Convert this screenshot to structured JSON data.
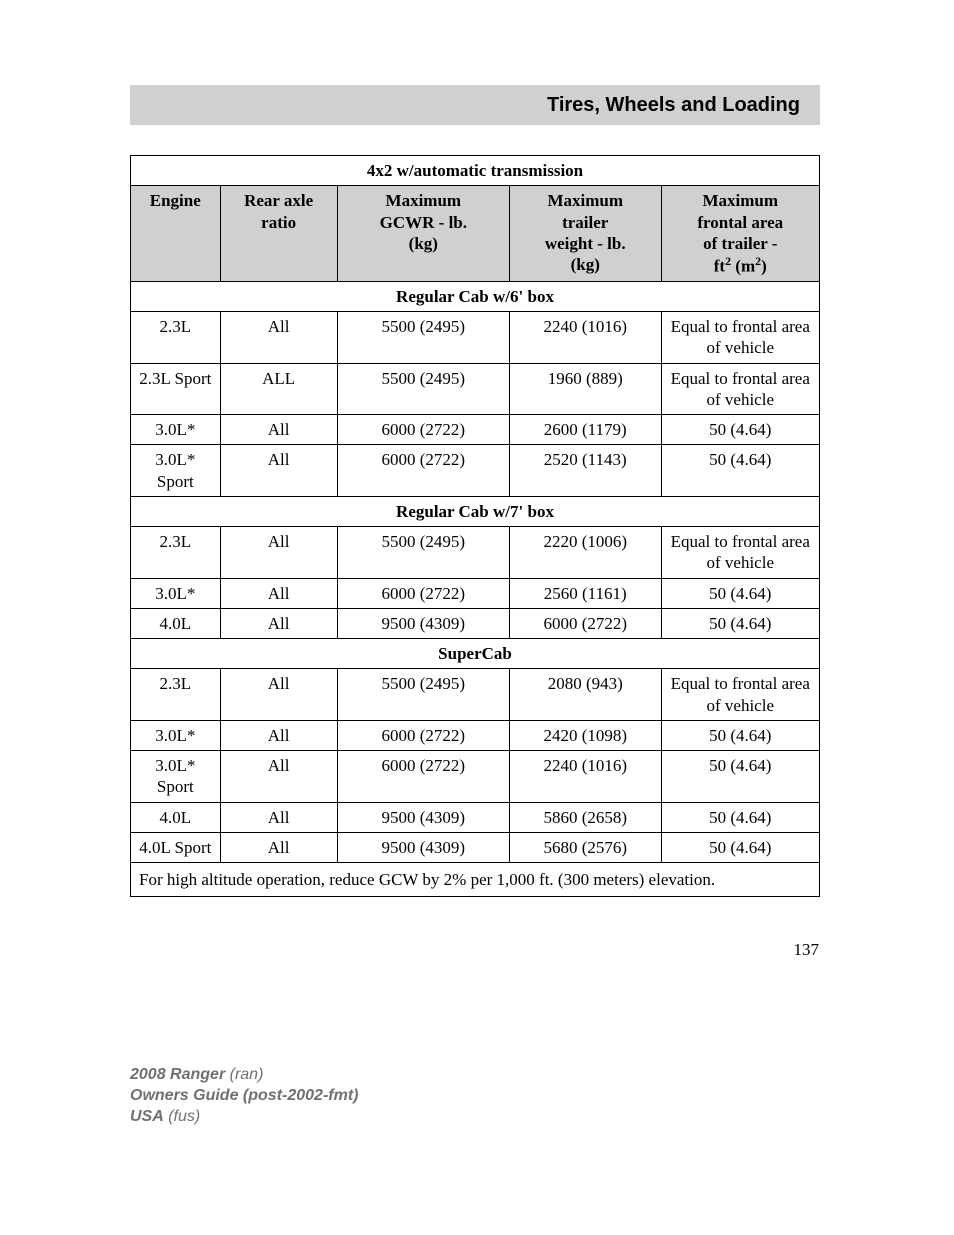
{
  "header": {
    "title": "Tires, Wheels and Loading"
  },
  "table": {
    "title": "4x2 w/automatic transmission",
    "columns": {
      "engine": "Engine",
      "axle": "Rear axle ratio",
      "gcwr1": "Maximum",
      "gcwr2": "GCWR - lb.",
      "gcwr3": "(kg)",
      "weight1": "Maximum",
      "weight2": "trailer",
      "weight3": "weight - lb.",
      "weight4": "(kg)",
      "area1": "Maximum",
      "area2": "frontal area",
      "area3": "of trailer -",
      "area4a": "ft",
      "area4b": "2",
      "area4c": " (m",
      "area4d": "2",
      "area4e": ")"
    },
    "sections": {
      "s1": "Regular Cab w/6' box",
      "s2": "Regular Cab w/7' box",
      "s3": "SuperCab"
    },
    "rows": {
      "r1": {
        "engine": "2.3L",
        "axle": "All",
        "gcwr": "5500 (2495)",
        "weight": "2240 (1016)",
        "area": "Equal to frontal area of vehicle"
      },
      "r2": {
        "engine": "2.3L Sport",
        "axle": "ALL",
        "gcwr": "5500 (2495)",
        "weight": "1960 (889)",
        "area": "Equal to frontal area of vehicle"
      },
      "r3": {
        "engine": "3.0L*",
        "axle": "All",
        "gcwr": "6000 (2722)",
        "weight": "2600 (1179)",
        "area": "50 (4.64)"
      },
      "r4": {
        "engine": "3.0L* Sport",
        "axle": "All",
        "gcwr": "6000 (2722)",
        "weight": "2520 (1143)",
        "area": "50 (4.64)"
      },
      "r5": {
        "engine": "2.3L",
        "axle": "All",
        "gcwr": "5500 (2495)",
        "weight": "2220 (1006)",
        "area": "Equal to frontal area of vehicle"
      },
      "r6": {
        "engine": "3.0L*",
        "axle": "All",
        "gcwr": "6000 (2722)",
        "weight": "2560 (1161)",
        "area": "50 (4.64)"
      },
      "r7": {
        "engine": "4.0L",
        "axle": "All",
        "gcwr": "9500 (4309)",
        "weight": "6000 (2722)",
        "area": "50 (4.64)"
      },
      "r8": {
        "engine": "2.3L",
        "axle": "All",
        "gcwr": "5500 (2495)",
        "weight": "2080 (943)",
        "area": "Equal to frontal area of vehicle"
      },
      "r9": {
        "engine": "3.0L*",
        "axle": "All",
        "gcwr": "6000 (2722)",
        "weight": "2420 (1098)",
        "area": "50 (4.64)"
      },
      "r10": {
        "engine": "3.0L* Sport",
        "axle": "All",
        "gcwr": "6000 (2722)",
        "weight": "2240 (1016)",
        "area": "50 (4.64)"
      },
      "r11": {
        "engine": "4.0L",
        "axle": "All",
        "gcwr": "9500 (4309)",
        "weight": "5860 (2658)",
        "area": "50 (4.64)"
      },
      "r12": {
        "engine": "4.0L Sport",
        "axle": "All",
        "gcwr": "9500 (4309)",
        "weight": "5680 (2576)",
        "area": "50 (4.64)"
      }
    },
    "footnote": "For high altitude operation, reduce GCW by 2% per 1,000 ft. (300 meters) elevation."
  },
  "page_number": "137",
  "footer": {
    "line1a": "2008 Ranger",
    "line1b": " (ran)",
    "line2": "Owners Guide (post-2002-fmt)",
    "line3a": "USA",
    "line3b": " (fus)"
  }
}
